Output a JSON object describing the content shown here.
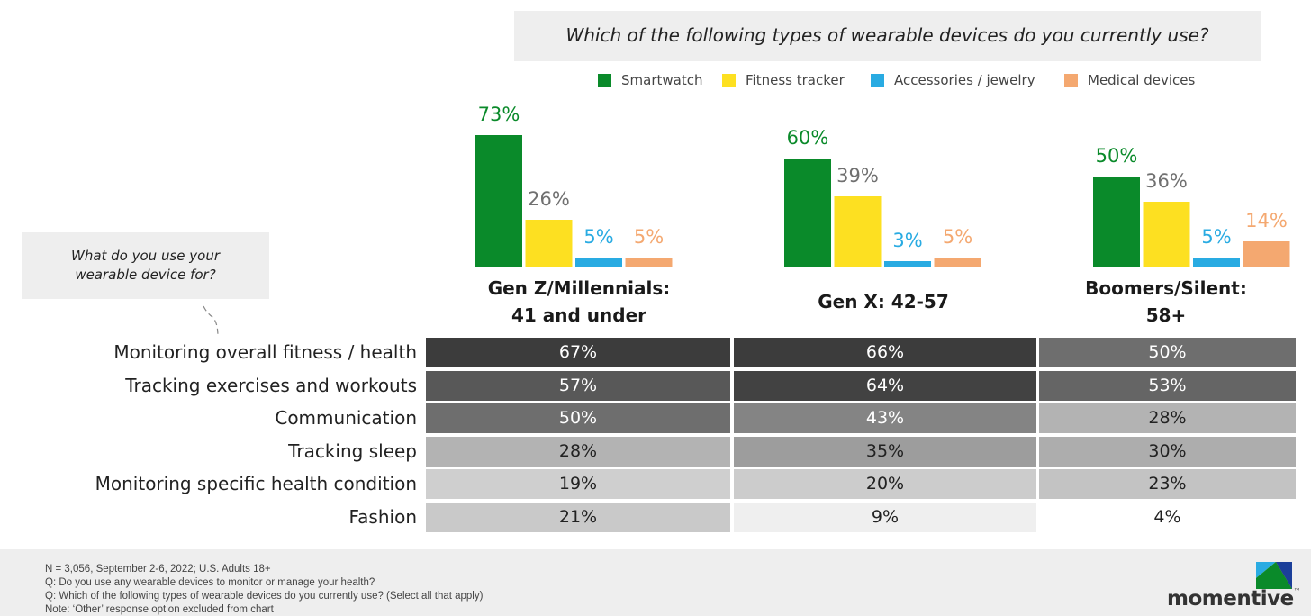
{
  "title": "Which of the following types of wearable devices do you currently use?",
  "chart_data": [
    {
      "type": "bar",
      "title": "Which of the following types of wearable devices do you currently use?",
      "categories": [
        "Gen Z/Millennials: 41 and under",
        "Gen X: 42-57",
        "Boomers/Silent: 58+"
      ],
      "series": [
        {
          "name": "Smartwatch",
          "color": "#0a8a2a",
          "values": [
            73,
            60,
            50
          ],
          "labels": [
            "73%",
            "60%",
            "50%"
          ]
        },
        {
          "name": "Fitness tracker",
          "color": "#fde021",
          "values": [
            26,
            39,
            36
          ],
          "labels": [
            "26%",
            "39%",
            "36%"
          ]
        },
        {
          "name": "Accessories / jewelry",
          "color": "#29abe2",
          "values": [
            5,
            3,
            5
          ],
          "labels": [
            "5%",
            "3%",
            "5%"
          ]
        },
        {
          "name": "Medical devices",
          "color": "#f4a870",
          "values": [
            5,
            5,
            14
          ],
          "labels": [
            "5%",
            "5%",
            "14%"
          ]
        }
      ],
      "legend_position": "top",
      "grid": false
    },
    {
      "type": "heatmap",
      "title": "What do you use your wearable device for?",
      "columns": [
        "Gen Z/Millennials: 41 and under",
        "Gen X: 42-57",
        "Boomers/Silent: 58+"
      ],
      "rows": [
        {
          "label": "Monitoring overall fitness / health",
          "values": [
            67,
            66,
            50
          ],
          "texts": [
            "67%",
            "66%",
            "50%"
          ]
        },
        {
          "label": "Tracking exercises and workouts",
          "values": [
            57,
            64,
            53
          ],
          "texts": [
            "57%",
            "64%",
            "53%"
          ]
        },
        {
          "label": "Communication",
          "values": [
            50,
            43,
            28
          ],
          "texts": [
            "50%",
            "43%",
            "28%"
          ]
        },
        {
          "label": "Tracking sleep",
          "values": [
            28,
            35,
            30
          ],
          "texts": [
            "28%",
            "35%",
            "30%"
          ]
        },
        {
          "label": "Monitoring specific health condition",
          "values": [
            19,
            20,
            23
          ],
          "texts": [
            "19%",
            "20%",
            "23%"
          ]
        },
        {
          "label": "Fashion",
          "values": [
            21,
            9,
            4
          ],
          "texts": [
            "21%",
            "9%",
            "4%"
          ]
        }
      ]
    }
  ],
  "group_titles": [
    {
      "line1": "Gen Z/Millennials:",
      "line2": "41 and under"
    },
    {
      "line1": "Gen X: 42-57",
      "line2": ""
    },
    {
      "line1": "Boomers/Silent:",
      "line2": "58+"
    }
  ],
  "side_question": "What do you use your wearable device for?",
  "footnotes": [
    "N = 3,056, September 2-6, 2022; U.S. Adults 18+",
    "Q: Do you use any wearable devices to monitor or manage your health?",
    "Q: Which of the following types of wearable devices do you currently use? (Select all that apply)",
    "Note: ‘Other’ response option excluded from chart"
  ],
  "logo": {
    "text": "momentive",
    "trademark": "™"
  },
  "colors": {
    "label_gray": "#707070",
    "heat_dark": "#3c3c3c",
    "heat_light": "#f2f2f2"
  }
}
